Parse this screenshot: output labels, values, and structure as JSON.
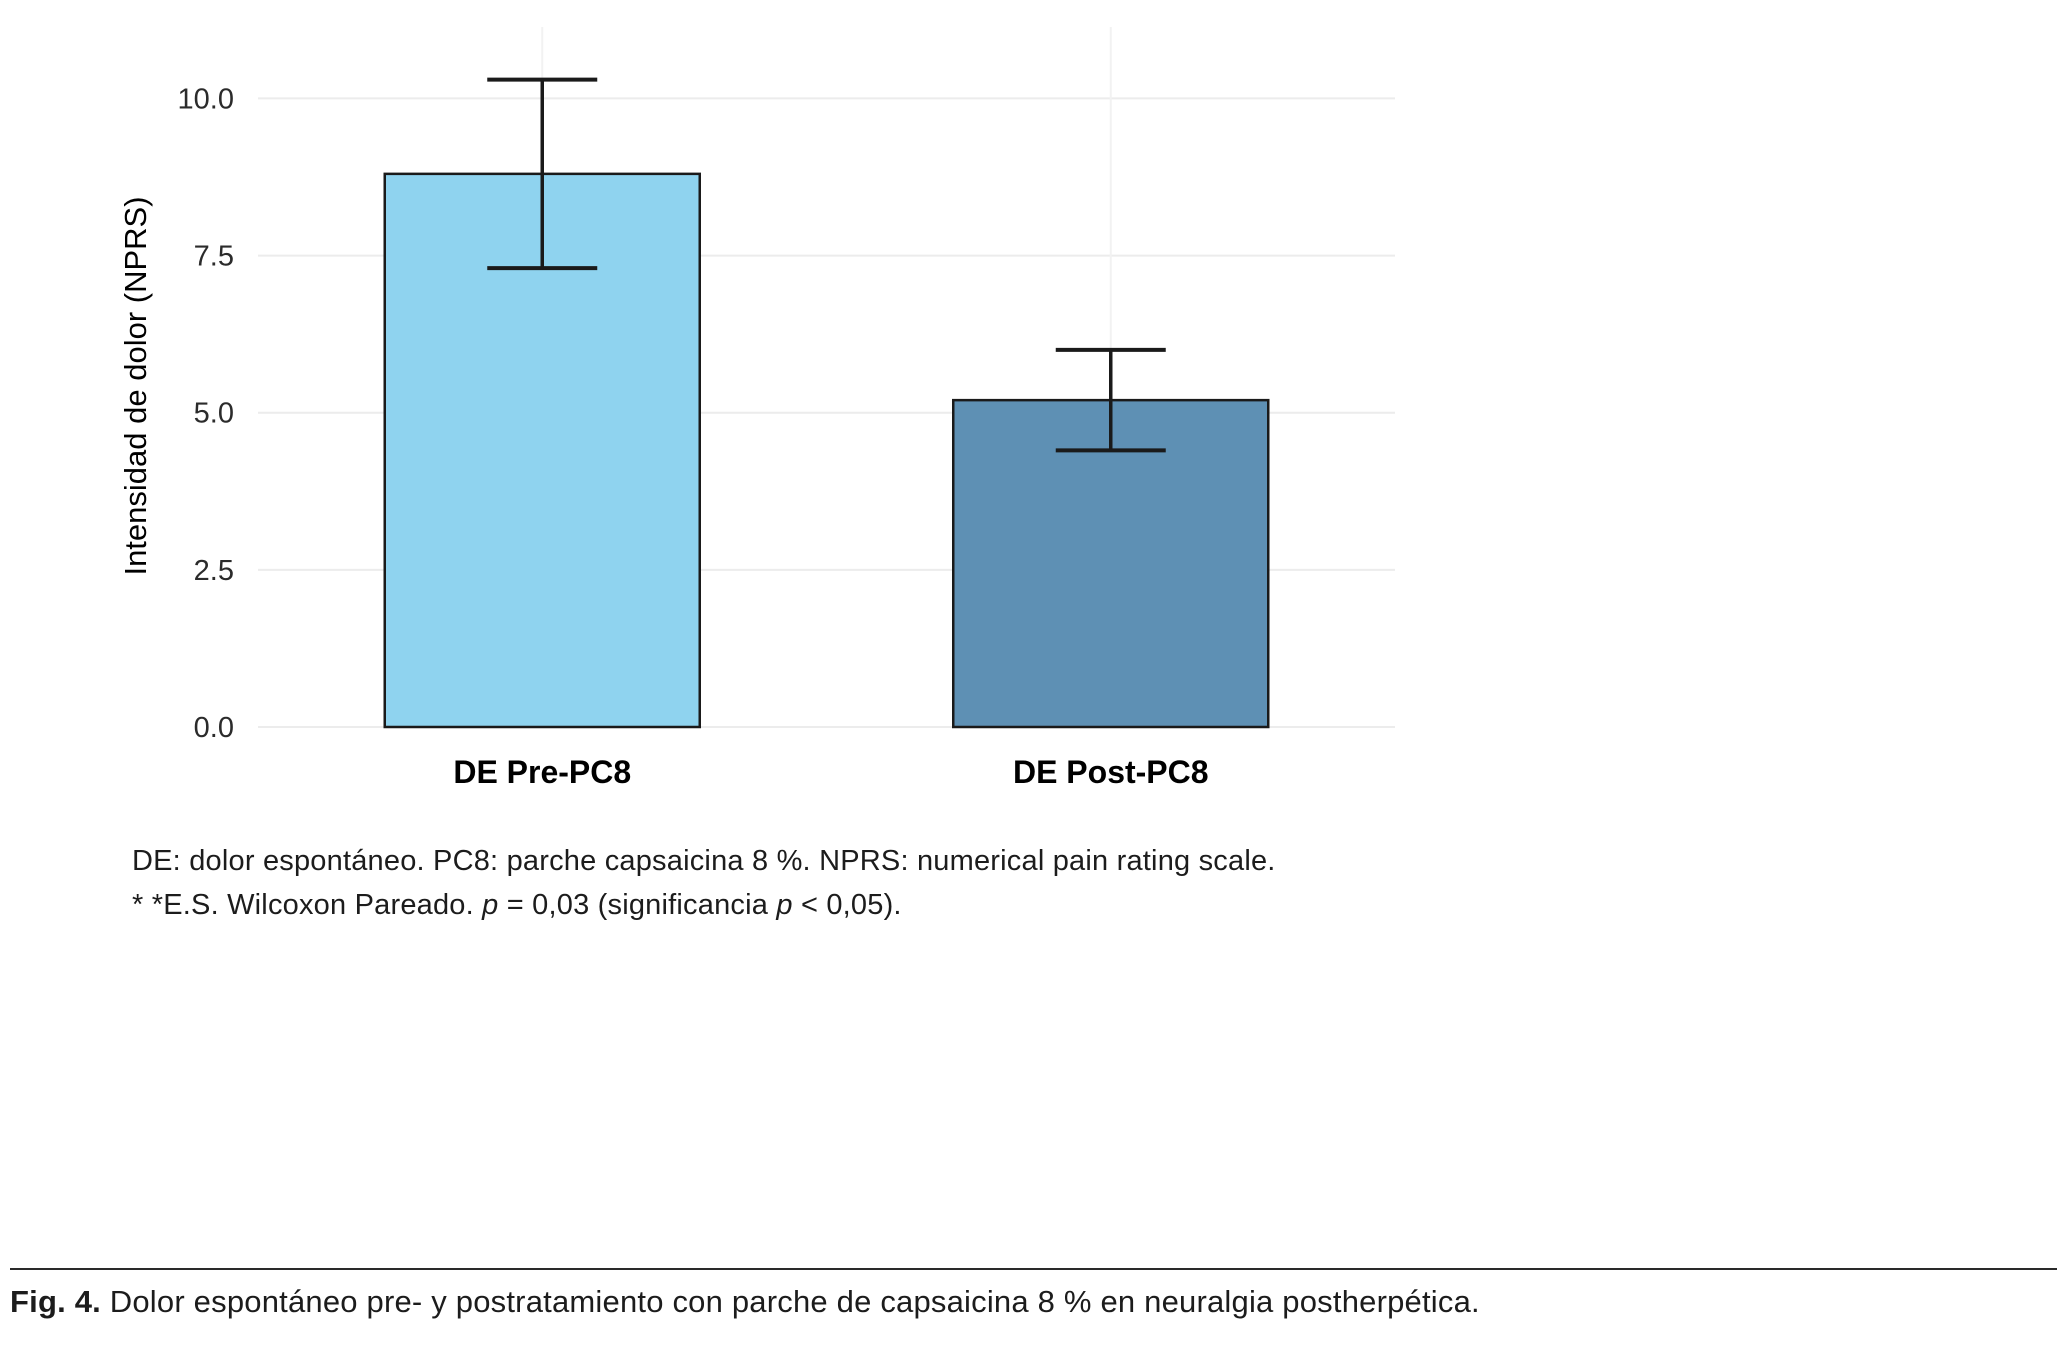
{
  "chart_data": {
    "type": "bar",
    "title": "",
    "xlabel": "",
    "ylabel": "Intensidad de dolor (NPRS)",
    "categories": [
      "DE Pre-PC8",
      "DE Post-PC8"
    ],
    "values": [
      8.8,
      5.2
    ],
    "error_low": [
      7.3,
      4.4
    ],
    "error_high": [
      10.3,
      6.0
    ],
    "yticks": [
      0,
      2.5,
      5,
      7.5,
      10
    ],
    "ytick_labels": [
      "0.0",
      "2.5",
      "5.0",
      "7.5",
      "10.0"
    ],
    "ylim": [
      0,
      10.85
    ],
    "bar_colors": [
      "#8FD3EF",
      "#5E90B4"
    ],
    "bar_outline": "#1a1a1a",
    "grid": true,
    "legend_position": "none"
  },
  "footnote": {
    "line1": "DE: dolor espontáneo. PC8: parche capsaicina 8 %. NPRS: numerical pain rating scale.",
    "line2_segments": [
      {
        "t": "* *E.S. Wilcoxon Pareado. ",
        "i": false
      },
      {
        "t": "p",
        "i": true
      },
      {
        "t": " = 0,03 (significancia ",
        "i": false
      },
      {
        "t": "p",
        "i": true
      },
      {
        "t": " < 0,05).",
        "i": false
      }
    ]
  },
  "caption": {
    "label": "Fig. 4.",
    "text": " Dolor espontáneo pre- y postratamiento con parche de capsaicina 8 % en neuralgia postherpética."
  }
}
